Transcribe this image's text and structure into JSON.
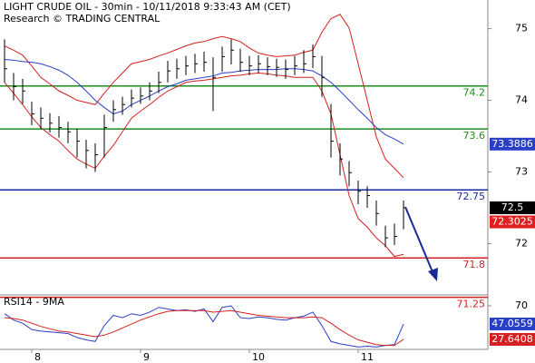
{
  "chart_data": {
    "type": "ohlc",
    "title": "LIGHT CRUDE OIL - 30min - 10/11/2018 9:33:43 AM (CET)",
    "subtitle": "Research © TRADING CENTRAL",
    "categories": [
      null,
      null,
      null,
      "8",
      null,
      null,
      null,
      null,
      null,
      null,
      null,
      null,
      null,
      null,
      null,
      "9",
      null,
      null,
      null,
      null,
      null,
      null,
      null,
      null,
      null,
      null,
      null,
      "10",
      null,
      null,
      null,
      null,
      null,
      null,
      null,
      null,
      null,
      null,
      null,
      "11",
      null,
      null,
      null,
      null,
      null
    ],
    "high": [
      74.85,
      74.38,
      74.3,
      73.98,
      73.9,
      73.82,
      73.78,
      73.7,
      73.6,
      73.45,
      73.4,
      73.8,
      74.0,
      74.05,
      74.15,
      74.18,
      74.25,
      74.4,
      74.55,
      74.58,
      74.62,
      74.65,
      74.68,
      74.6,
      74.75,
      74.85,
      74.72,
      74.62,
      74.63,
      74.6,
      74.58,
      74.57,
      74.62,
      74.7,
      74.78,
      74.62,
      73.95,
      73.4,
      73.15,
      72.88,
      72.8,
      72.6,
      72.25,
      72.28,
      72.6
    ],
    "low": [
      74.25,
      74.0,
      73.95,
      73.65,
      73.6,
      73.55,
      73.48,
      73.4,
      73.2,
      73.05,
      73.0,
      73.2,
      73.7,
      73.8,
      73.9,
      73.95,
      74.0,
      74.1,
      74.25,
      74.3,
      74.35,
      74.38,
      74.4,
      73.85,
      74.4,
      74.5,
      74.4,
      74.35,
      74.38,
      74.35,
      74.33,
      74.3,
      74.35,
      74.38,
      74.45,
      74.05,
      73.2,
      72.95,
      72.8,
      72.55,
      72.5,
      72.25,
      71.95,
      71.98,
      72.2
    ],
    "close": [
      74.44,
      74.19,
      74.13,
      73.81,
      73.75,
      73.68,
      73.62,
      73.56,
      73.43,
      73.3,
      73.24,
      73.62,
      73.87,
      73.94,
      74.03,
      74.06,
      74.13,
      74.25,
      74.41,
      74.44,
      74.48,
      74.51,
      74.53,
      74.32,
      74.61,
      74.7,
      74.53,
      74.48,
      74.51,
      74.47,
      74.46,
      74.43,
      74.48,
      74.51,
      74.61,
      74.32,
      73.43,
      73.18,
      72.99,
      72.73,
      72.67,
      72.42,
      72.08,
      72.1,
      72.5
    ],
    "bar_color": "#000000",
    "ylim": [
      71.22,
      75.4
    ],
    "yticks": [
      72,
      73,
      74,
      75
    ],
    "overlays": [
      {
        "color": "#d42020",
        "values": [
          74.76,
          74.7,
          74.63,
          74.48,
          74.32,
          74.23,
          74.13,
          74.07,
          74.0,
          73.97,
          73.94,
          74.1,
          74.25,
          74.38,
          74.51,
          74.54,
          74.57,
          74.62,
          74.66,
          74.71,
          74.76,
          74.8,
          74.82,
          74.86,
          74.89,
          74.86,
          74.82,
          74.73,
          74.66,
          74.63,
          74.61,
          74.62,
          74.63,
          74.67,
          74.7,
          74.95,
          75.14,
          75.2,
          75.01,
          74.51,
          74.0,
          73.49,
          73.18,
          73.05,
          72.92
        ]
      },
      {
        "color": "#d42020",
        "values": [
          74.25,
          74.1,
          73.94,
          73.77,
          73.62,
          73.52,
          73.43,
          73.3,
          73.18,
          73.11,
          73.05,
          73.22,
          73.37,
          73.56,
          73.75,
          73.85,
          73.94,
          74.04,
          74.13,
          74.19,
          74.25,
          74.27,
          74.28,
          74.3,
          74.32,
          74.34,
          74.35,
          74.37,
          74.38,
          74.37,
          74.35,
          74.34,
          74.32,
          74.32,
          74.32,
          74.13,
          73.81,
          73.24,
          72.67,
          72.35,
          72.23,
          72.08,
          71.97,
          71.82,
          71.85
        ]
      },
      {
        "color": "#2a3fc8",
        "values": [
          74.57,
          74.56,
          74.54,
          74.53,
          74.51,
          74.47,
          74.42,
          74.35,
          74.25,
          74.13,
          74.0,
          73.9,
          73.81,
          73.85,
          73.94,
          74.0,
          74.06,
          74.13,
          74.19,
          74.23,
          74.28,
          74.3,
          74.32,
          74.34,
          74.38,
          74.39,
          74.41,
          74.42,
          74.43,
          74.43,
          74.43,
          74.44,
          74.44,
          74.43,
          74.41,
          74.34,
          74.25,
          74.13,
          74.0,
          73.87,
          73.75,
          73.62,
          73.52,
          73.46,
          73.3886
        ]
      }
    ],
    "levels": [
      {
        "value": 74.2,
        "color": "#1a8f1a"
      },
      {
        "value": 73.6,
        "color": "#1a8f1a"
      },
      {
        "value": 72.75,
        "color": "#1a2a9a"
      },
      {
        "value": 71.8,
        "color": "#d42020"
      },
      {
        "value": 71.25,
        "color": "#d42020"
      }
    ],
    "price_labels": [
      {
        "value": 72.3025,
        "color": "#e02020"
      }
    ],
    "rsi": {
      "label": "RSI14 - 9MA",
      "ylim": [
        15,
        78
      ],
      "yticks": [
        70
      ],
      "series": [
        {
          "color": "#2a3fc8",
          "values": [
            60,
            52,
            48,
            40,
            38,
            37,
            36,
            35,
            30,
            27,
            25,
            45,
            58,
            55,
            60,
            58,
            62,
            68,
            66,
            64,
            65,
            63,
            66,
            50,
            68,
            70,
            55,
            54,
            56,
            55,
            53,
            52,
            55,
            57,
            62,
            45,
            25,
            22,
            20,
            18,
            19,
            18,
            20,
            21,
            47.0559
          ]
        },
        {
          "color": "#d42020",
          "values": [
            55,
            54,
            52,
            48,
            44,
            41,
            38,
            37,
            35,
            33,
            31,
            33,
            37,
            42,
            47,
            52,
            56,
            60,
            63,
            64,
            64,
            64,
            64,
            62,
            63,
            64,
            62,
            60,
            58,
            57,
            56,
            55,
            55,
            55,
            56,
            55,
            48,
            40,
            33,
            27,
            24,
            21,
            20,
            20,
            27.6408
          ]
        }
      ]
    }
  }
}
